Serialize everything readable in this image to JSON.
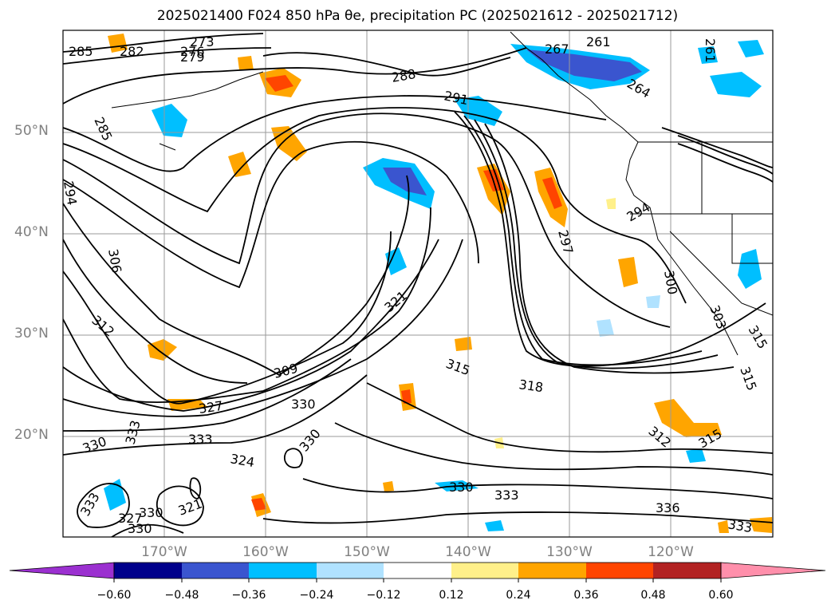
{
  "title": "2025021400 F024 850 hPa θe, precipitation PC (2025021612 - 2025021712)",
  "map": {
    "lat_labels": [
      "50°N",
      "40°N",
      "30°N",
      "20°N"
    ],
    "lon_labels": [
      "170°W",
      "160°W",
      "150°W",
      "140°W",
      "130°W",
      "120°W"
    ],
    "contour_labels": [
      "273",
      "276",
      "279",
      "282",
      "285",
      "261",
      "267",
      "264",
      "261",
      "288",
      "291",
      "285",
      "294",
      "297",
      "294",
      "300",
      "303",
      "306",
      "312",
      "315",
      "315",
      "315",
      "318",
      "321",
      "327",
      "330",
      "330",
      "333",
      "333",
      "330",
      "324",
      "321",
      "327",
      "330",
      "330",
      "333",
      "330",
      "333",
      "336",
      "333",
      "312",
      "315",
      "309"
    ]
  },
  "colorbar": {
    "ticks": [
      "−0.60",
      "−0.48",
      "−0.36",
      "−0.24",
      "−0.12",
      "0.12",
      "0.24",
      "0.36",
      "0.48",
      "0.60"
    ],
    "colors": [
      "#9b30d0",
      "#00008b",
      "#3a55cf",
      "#00bfff",
      "#b0e2ff",
      "#ffffff",
      "#fff08a",
      "#ffa500",
      "#ff4500",
      "#b22222",
      "#ff8fab"
    ]
  }
}
